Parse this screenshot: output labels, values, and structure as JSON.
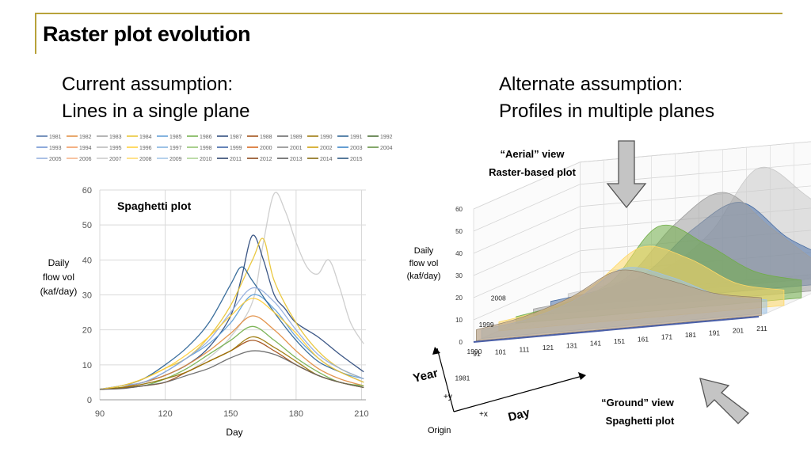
{
  "slide": {
    "title": "Raster plot evolution",
    "accent_color": "#b8a23a"
  },
  "left": {
    "heading_line1": "Current assumption:",
    "heading_line2": "Lines in a single plane"
  },
  "right": {
    "heading_line1": "Alternate assumption:",
    "heading_line2": "Profiles in multiple planes"
  },
  "chart_data": [
    {
      "type": "line",
      "title": "Spaghetti plot",
      "xlabel": "Day",
      "ylabel_lines": [
        "Daily",
        "flow vol",
        "(kaf/day)"
      ],
      "xlim": [
        90,
        212
      ],
      "ylim": [
        0,
        60
      ],
      "xticks": [
        "90",
        "120",
        "150",
        "180",
        "210"
      ],
      "yticks": [
        "0",
        "10",
        "20",
        "30",
        "40",
        "50",
        "60"
      ],
      "grid": true,
      "legend_position": "top",
      "series_note": "one line per year 1981-2015; per-year values not individually recoverable, approximate representative profiles given",
      "legend": [
        {
          "name": "1981",
          "color": "#4a6fa5"
        },
        {
          "name": "1982",
          "color": "#e08a3c"
        },
        {
          "name": "1983",
          "color": "#9e9e9e"
        },
        {
          "name": "1984",
          "color": "#e8c22c"
        },
        {
          "name": "1985",
          "color": "#5b9bd5"
        },
        {
          "name": "1986",
          "color": "#70ad47"
        },
        {
          "name": "1987",
          "color": "#264478"
        },
        {
          "name": "1988",
          "color": "#9e480e"
        },
        {
          "name": "1989",
          "color": "#636363"
        },
        {
          "name": "1990",
          "color": "#997300"
        },
        {
          "name": "1991",
          "color": "#255e91"
        },
        {
          "name": "1992",
          "color": "#43682b"
        },
        {
          "name": "1993",
          "color": "#698ed0"
        },
        {
          "name": "1994",
          "color": "#f1975a"
        },
        {
          "name": "1995",
          "color": "#b7b7b7"
        },
        {
          "name": "1996",
          "color": "#ffcd33"
        },
        {
          "name": "1997",
          "color": "#7cafdd"
        },
        {
          "name": "1998",
          "color": "#8cc168"
        },
        {
          "name": "1999",
          "color": "#335aa1"
        },
        {
          "name": "2000",
          "color": "#d26012"
        },
        {
          "name": "2001",
          "color": "#848484"
        },
        {
          "name": "2002",
          "color": "#cc9a00"
        },
        {
          "name": "2003",
          "color": "#327dc2"
        },
        {
          "name": "2004",
          "color": "#5a8a39"
        },
        {
          "name": "2005",
          "color": "#8faadc"
        },
        {
          "name": "2006",
          "color": "#f4b183"
        },
        {
          "name": "2007",
          "color": "#c9c9c9"
        },
        {
          "name": "2008",
          "color": "#ffd966"
        },
        {
          "name": "2009",
          "color": "#9dc3e6"
        },
        {
          "name": "2010",
          "color": "#a9d18e"
        },
        {
          "name": "2011",
          "color": "#203864"
        },
        {
          "name": "2012",
          "color": "#843c0c"
        },
        {
          "name": "2013",
          "color": "#525252"
        },
        {
          "name": "2014",
          "color": "#7f6000"
        },
        {
          "name": "2015",
          "color": "#1f4e79"
        }
      ],
      "series": [
        {
          "color": "#c9c9c9",
          "x": [
            90,
            100,
            110,
            120,
            130,
            140,
            150,
            160,
            165,
            170,
            175,
            180,
            185,
            190,
            195,
            200,
            205,
            211
          ],
          "y": [
            3,
            3.5,
            4.5,
            6,
            8,
            12,
            18,
            28,
            45,
            59,
            54,
            45,
            38,
            36,
            40,
            32,
            22,
            16
          ]
        },
        {
          "color": "#264478",
          "x": [
            90,
            100,
            110,
            120,
            130,
            140,
            150,
            155,
            160,
            165,
            170,
            175,
            180,
            190,
            200,
            211
          ],
          "y": [
            3,
            3.5,
            5,
            7,
            10,
            15,
            24,
            35,
            47,
            40,
            30,
            26,
            22,
            18,
            13,
            8
          ]
        },
        {
          "color": "#e8c22c",
          "x": [
            90,
            100,
            110,
            120,
            130,
            140,
            150,
            160,
            165,
            170,
            180,
            190,
            200,
            211
          ],
          "y": [
            3,
            4,
            6,
            9,
            12,
            18,
            27,
            40,
            46,
            34,
            22,
            14,
            9,
            6
          ]
        },
        {
          "color": "#5b9bd5",
          "x": [
            90,
            100,
            110,
            120,
            130,
            140,
            150,
            160,
            170,
            180,
            190,
            200,
            211
          ],
          "y": [
            3,
            4,
            5,
            8,
            12,
            16,
            22,
            30,
            26,
            18,
            12,
            8,
            6
          ]
        },
        {
          "color": "#e08a3c",
          "x": [
            90,
            100,
            110,
            120,
            130,
            140,
            150,
            160,
            170,
            180,
            190,
            200,
            211
          ],
          "y": [
            3,
            3.5,
            5,
            7,
            10,
            14,
            19,
            24,
            20,
            14,
            9,
            6,
            4
          ]
        },
        {
          "color": "#70ad47",
          "x": [
            90,
            100,
            110,
            120,
            130,
            140,
            150,
            160,
            170,
            180,
            190,
            200,
            211
          ],
          "y": [
            3,
            3.5,
            4,
            6,
            9,
            13,
            17,
            21,
            17,
            12,
            8,
            5,
            4
          ]
        },
        {
          "color": "#9e480e",
          "x": [
            90,
            100,
            110,
            120,
            130,
            140,
            150,
            160,
            170,
            180,
            190,
            200,
            211
          ],
          "y": [
            3,
            3.3,
            4,
            5,
            8,
            11,
            14,
            17,
            14,
            10,
            7,
            5,
            3.5
          ]
        },
        {
          "color": "#255e91",
          "x": [
            90,
            100,
            110,
            120,
            130,
            140,
            150,
            155,
            160,
            170,
            180,
            190,
            200,
            211
          ],
          "y": [
            3,
            4,
            6,
            10,
            15,
            22,
            33,
            38,
            34,
            25,
            17,
            11,
            8,
            5
          ]
        },
        {
          "color": "#997300",
          "x": [
            90,
            100,
            110,
            120,
            130,
            140,
            150,
            160,
            170,
            180,
            190,
            200,
            211
          ],
          "y": [
            3,
            3.5,
            4.5,
            6,
            8,
            11,
            14,
            18,
            15,
            11,
            7,
            5,
            3.5
          ]
        },
        {
          "color": "#8faadc",
          "x": [
            90,
            100,
            110,
            120,
            130,
            140,
            150,
            160,
            170,
            180,
            190,
            200,
            211
          ],
          "y": [
            3,
            4,
            5,
            8,
            12,
            17,
            25,
            32,
            28,
            20,
            13,
            9,
            6
          ]
        },
        {
          "color": "#ffcd33",
          "x": [
            90,
            100,
            110,
            120,
            130,
            140,
            150,
            160,
            170,
            180,
            190,
            200,
            211
          ],
          "y": [
            3,
            4,
            6,
            9,
            13,
            18,
            24,
            29,
            25,
            19,
            12,
            8,
            5
          ]
        },
        {
          "color": "#636363",
          "x": [
            90,
            100,
            110,
            120,
            130,
            140,
            150,
            160,
            170,
            180,
            190,
            200,
            211
          ],
          "y": [
            3,
            3.2,
            4,
            5,
            7,
            9,
            12,
            14,
            13,
            10,
            7,
            5,
            3.5
          ]
        }
      ]
    },
    {
      "type": "area",
      "view": "3d-ribbons",
      "ylabel_lines": [
        "Daily",
        "flow vol",
        "(kaf/day)"
      ],
      "xlabel": "Day",
      "depth_label": "Year",
      "zlim": [
        0,
        60
      ],
      "zticks": [
        "0",
        "10",
        "20",
        "30",
        "40",
        "50",
        "60"
      ],
      "xticks": [
        "91",
        "101",
        "111",
        "121",
        "131",
        "141",
        "151",
        "161",
        "171",
        "181",
        "191",
        "201",
        "211"
      ],
      "depth_ticks": [
        "1981",
        "1990",
        "1999",
        "2008"
      ],
      "axis_labels": {
        "origin": "Origin",
        "plus_x": "+x",
        "plus_y": "+y"
      },
      "annotations": {
        "aerial_line1": "“Aerial” view",
        "aerial_line2": "Raster-based plot",
        "ground_line1": "“Ground” view",
        "ground_line2": "Spaghetti plot"
      },
      "ribbons": [
        {
          "color": "#9dc3e6",
          "x": [
            91,
            111,
            131,
            151,
            171,
            191,
            211
          ],
          "y": [
            4,
            7,
            14,
            26,
            20,
            10,
            6
          ]
        },
        {
          "color": "#ffd966",
          "x": [
            91,
            111,
            131,
            151,
            171,
            191,
            211
          ],
          "y": [
            4,
            8,
            17,
            32,
            25,
            12,
            7
          ]
        },
        {
          "color": "#70ad47",
          "x": [
            91,
            111,
            131,
            151,
            171,
            191,
            211
          ],
          "y": [
            3,
            7,
            15,
            38,
            28,
            14,
            8
          ]
        },
        {
          "color": "#9e9e9e",
          "x": [
            91,
            111,
            131,
            151,
            171,
            191,
            211
          ],
          "y": [
            3,
            6,
            14,
            36,
            48,
            30,
            12
          ]
        },
        {
          "color": "#4a6fa5",
          "x": [
            91,
            111,
            131,
            151,
            171,
            191,
            211
          ],
          "y": [
            3,
            6,
            12,
            30,
            40,
            22,
            10
          ]
        },
        {
          "color": "#c9c9c9",
          "x": [
            91,
            111,
            131,
            151,
            171,
            191,
            211
          ],
          "y": [
            3,
            6,
            10,
            25,
            52,
            38,
            18
          ]
        }
      ]
    }
  ]
}
